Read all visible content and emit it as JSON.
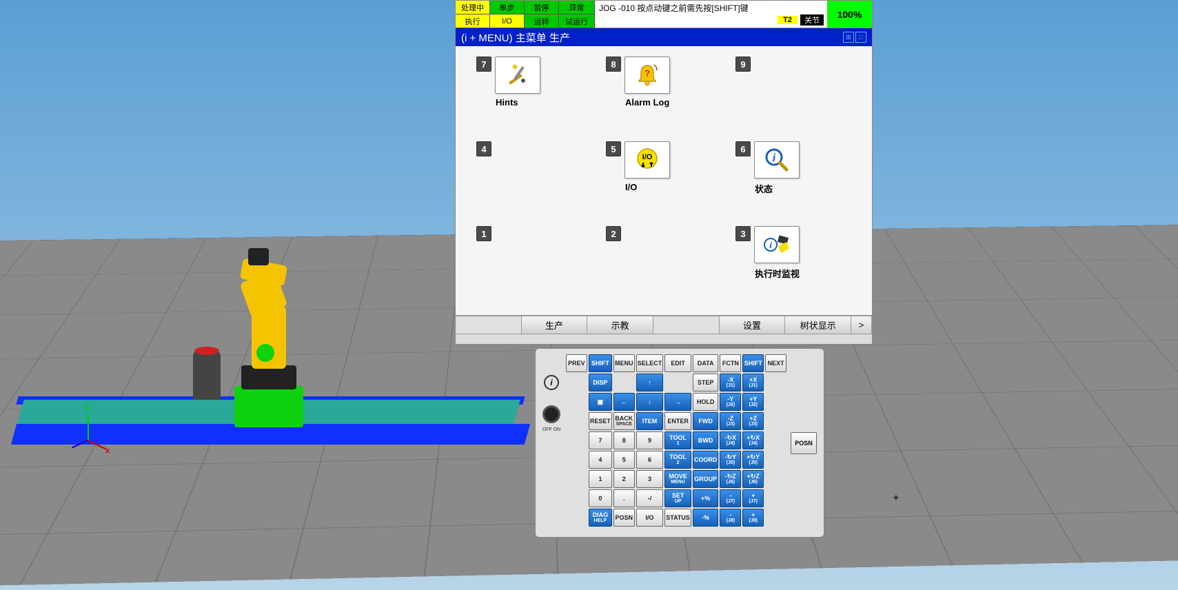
{
  "status": {
    "row1": [
      "处理中",
      "单步",
      "暂停",
      "异常"
    ],
    "row2": [
      "执行",
      "I/O",
      "运转",
      "试运行"
    ],
    "row1_colors": [
      "#ffff00",
      "#00c800",
      "#00c800",
      "#00c800"
    ],
    "row2_colors": [
      "#ffff00",
      "#ffff00",
      "#00c800",
      "#00c800"
    ],
    "message": "JOG -010 按点动键之前需先按[SHIFT]键",
    "mode_badge": "T2",
    "coord_badge": "关节",
    "override_pct": "100%"
  },
  "menu_header": {
    "text": "(i + MENU) 主菜单 生产"
  },
  "menu": {
    "items": [
      {
        "num": "7",
        "label": "Hints",
        "icon": "hints"
      },
      {
        "num": "8",
        "label": "Alarm Log",
        "icon": "bell"
      },
      {
        "num": "9",
        "label": "",
        "icon": ""
      },
      {
        "num": "4",
        "label": "",
        "icon": ""
      },
      {
        "num": "5",
        "label": "I/O",
        "icon": "io"
      },
      {
        "num": "6",
        "label": "状态",
        "icon": "info"
      },
      {
        "num": "1",
        "label": "",
        "icon": ""
      },
      {
        "num": "2",
        "label": "",
        "icon": ""
      },
      {
        "num": "3",
        "label": "执行时监视",
        "icon": "monitor"
      }
    ]
  },
  "softkeys": [
    "",
    "生产",
    "示教",
    "",
    "设置",
    "树状显示",
    ">"
  ],
  "keypad": {
    "left_switch_label": "OFF  ON",
    "posn": "POSN",
    "rows": [
      [
        "PREV",
        "SHIFT:b",
        "MENU",
        "SELECT",
        "EDIT",
        "DATA",
        "FCTN",
        "SHIFT:b",
        "NEXT"
      ],
      [
        "i:circle",
        "DISP:b",
        "",
        "↑:b",
        "",
        "STEP",
        "-X|(J1):b",
        "+X|(J1):b",
        ""
      ],
      [
        "",
        "▣:b",
        "←:b",
        "↓:b",
        "→:b",
        "HOLD",
        "-Y|(J2):b",
        "+Y|(J2):b",
        ""
      ],
      [
        "",
        "RESET",
        "BACK|SPACE",
        "ITEM:b",
        "ENTER",
        "FWD:b",
        "-Z|(J3):b",
        "+Z|(J3):b",
        ""
      ],
      [
        "",
        "7",
        "8",
        "9",
        "TOOL|1:b",
        "BWD:b",
        "-↻X|(J4):b",
        "+↻X|(J4):b",
        ""
      ],
      [
        "",
        "4",
        "5",
        "6",
        "TOOL|2:b",
        "COORD:b",
        "-↻Y|(J5):b",
        "+↻Y|(J5):b",
        ""
      ],
      [
        "",
        "1",
        "2",
        "3",
        "MOVE|MENU:b",
        "GROUP:b",
        "-↻Z|(J6):b",
        "+↻Z|(J6):b",
        ""
      ],
      [
        "",
        "0",
        ".",
        "-/",
        "SET|UP:b",
        "+%:b",
        "-|(J7):b",
        "+|(J7):b",
        ""
      ],
      [
        "",
        "DIAG|HELP:b",
        "POSN",
        "I/O",
        "STATUS",
        "-%:b",
        "-|(J8):b",
        "+|(J8):b",
        ""
      ]
    ]
  },
  "colors": {
    "accent_blue": "#1560b8",
    "accent_yellow": "#ffff00",
    "accent_green": "#00c800",
    "pendant_bg": "#dcdcdc",
    "header_blue": "#0020c8"
  }
}
